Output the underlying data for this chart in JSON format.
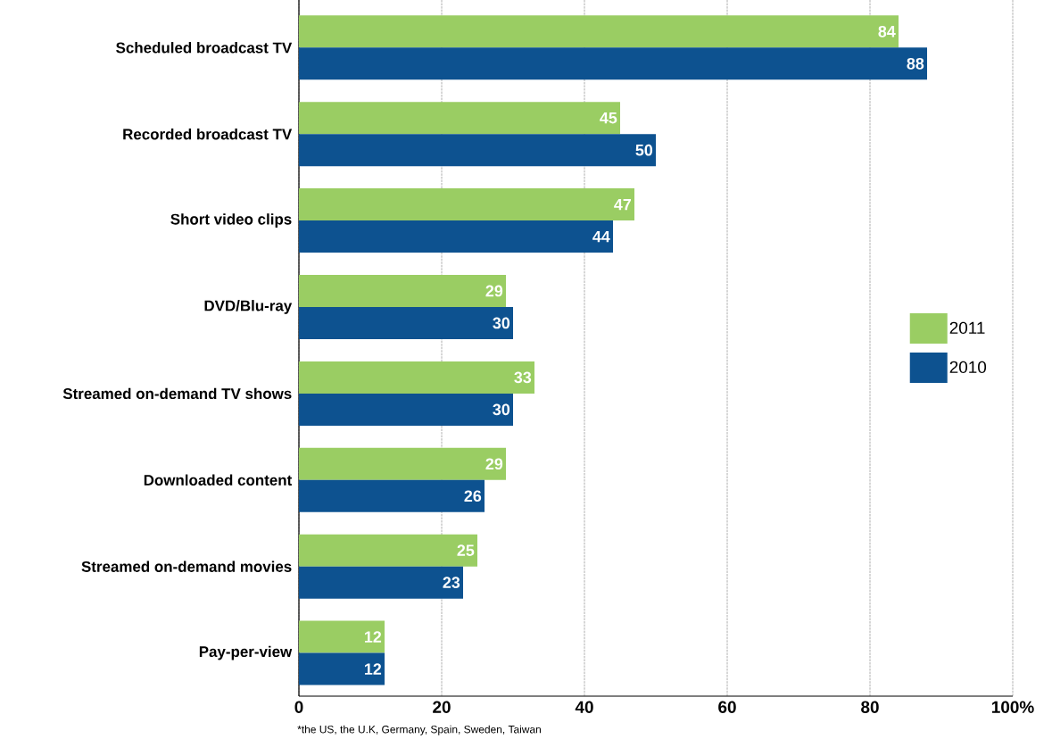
{
  "chart_data": {
    "type": "bar",
    "orientation": "horizontal",
    "categories": [
      "Scheduled broadcast TV",
      "Recorded broadcast TV",
      "Short video clips",
      "DVD/Blu-ray",
      "Streamed on-demand TV shows",
      "Downloaded content",
      "Streamed on-demand movies",
      "Pay-per-view"
    ],
    "series": [
      {
        "name": "2011",
        "color": "#9acd63",
        "values": [
          84,
          45,
          47,
          29,
          33,
          29,
          25,
          12
        ]
      },
      {
        "name": "2010",
        "color": "#0d5290",
        "values": [
          88,
          50,
          44,
          30,
          30,
          26,
          23,
          12
        ]
      }
    ],
    "xlim": [
      0,
      100
    ],
    "xticks": [
      0,
      20,
      40,
      60,
      80,
      {
        "value": 100,
        "label": "100%"
      }
    ],
    "grid": "x",
    "legend": "right",
    "data_labels": true,
    "annotations": [
      "*the US, the U.K, Germany, Spain, Sweden, Taiwan"
    ]
  }
}
